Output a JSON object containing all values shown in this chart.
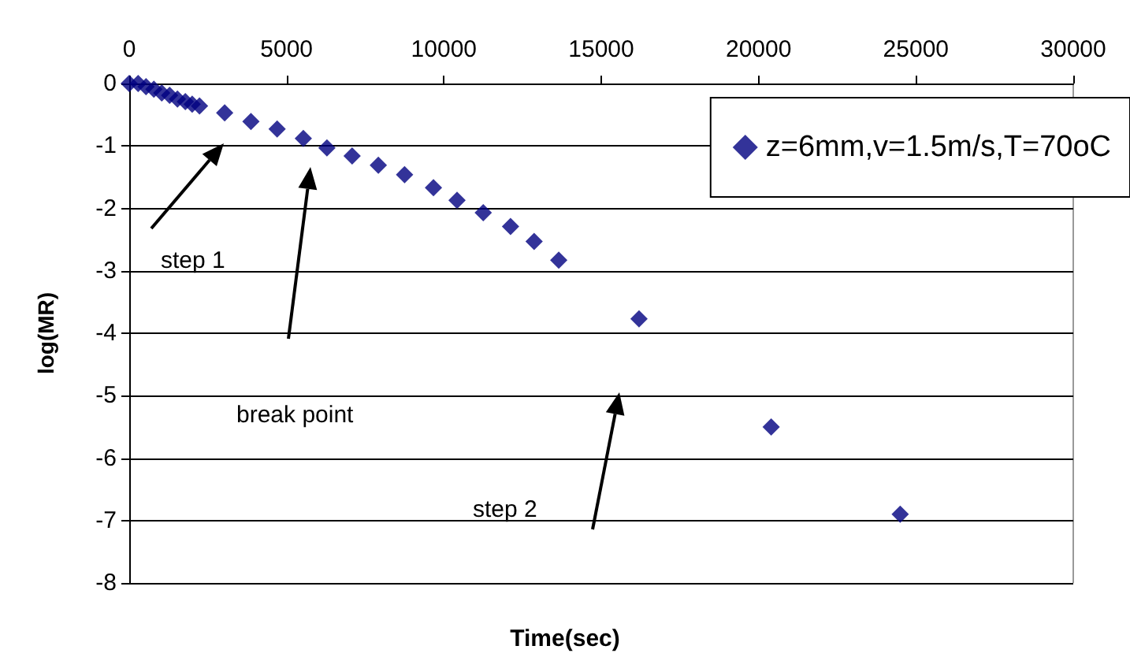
{
  "chart_data": {
    "type": "scatter",
    "xlabel": "Time(sec)",
    "ylabel": "log(MR)",
    "xlim": [
      0,
      30000
    ],
    "xticks": [
      0,
      5000,
      10000,
      15000,
      20000,
      25000,
      30000
    ],
    "ylim": [
      -8,
      0
    ],
    "yticks": [
      -8,
      -7,
      -6,
      -5,
      -4,
      -3,
      -2,
      -1,
      0
    ],
    "grid": "y",
    "legend": "top right",
    "marker": "diamond",
    "annotations": [
      "step 1",
      "break point",
      "step 2"
    ],
    "series": [
      {
        "name": "z=6mm,v=1.5m/s,T=70oC",
        "color": "#000080",
        "x": [
          0,
          283,
          533,
          783,
          1033,
          1283,
          1533,
          1783,
          2000,
          2233,
          3033,
          3867,
          4700,
          5533,
          6283,
          7083,
          7917,
          8750,
          9667,
          10417,
          11250,
          12117,
          12867,
          13650,
          16200,
          20400,
          24500
        ],
        "values": [
          0,
          0,
          -0.05,
          -0.09,
          -0.15,
          -0.19,
          -0.25,
          -0.29,
          -0.33,
          -0.36,
          -0.47,
          -0.61,
          -0.73,
          -0.88,
          -1.03,
          -1.16,
          -1.31,
          -1.46,
          -1.67,
          -1.87,
          -2.07,
          -2.29,
          -2.53,
          -2.83,
          -3.77,
          -5.5,
          -6.9
        ]
      }
    ]
  }
}
